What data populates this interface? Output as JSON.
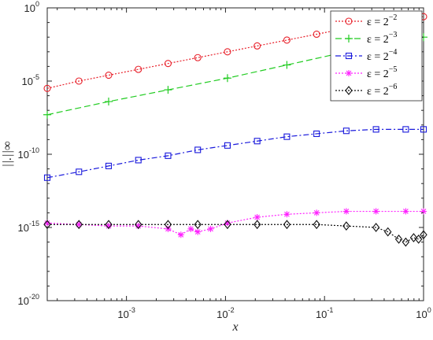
{
  "chart_data": {
    "type": "line",
    "xlabel": "x",
    "ylabel": "||.||∞",
    "xscale": "log",
    "yscale": "log",
    "xlim_exp": [
      -3.8,
      0
    ],
    "ylim_exp": [
      -20,
      0
    ],
    "x_ticks": [
      {
        "base": "10",
        "exp": "-3"
      },
      {
        "base": "10",
        "exp": "-2"
      },
      {
        "base": "10",
        "exp": "-1"
      },
      {
        "base": "10",
        "exp": "0"
      }
    ],
    "y_ticks": [
      {
        "base": "10",
        "exp": "-20"
      },
      {
        "base": "10",
        "exp": "-15"
      },
      {
        "base": "10",
        "exp": "-10"
      },
      {
        "base": "10",
        "exp": "-5"
      },
      {
        "base": "10",
        "exp": "0"
      }
    ],
    "legend_position": "top-right",
    "grid": false,
    "series": [
      {
        "name": "ε = 2",
        "name_sup": "−2",
        "color": "#e8202a",
        "dash": "2,2",
        "marker": "circle",
        "log10_x": [
          -3.8,
          -3.48,
          -3.18,
          -2.88,
          -2.58,
          -2.28,
          -1.98,
          -1.68,
          -1.38,
          -1.08,
          -0.78,
          -0.48,
          -0.18,
          0
        ],
        "log10_y": [
          -5.5,
          -5.0,
          -4.6,
          -4.2,
          -3.8,
          -3.4,
          -3.0,
          -2.6,
          -2.2,
          -1.8,
          -1.4,
          -1.0,
          -0.7,
          -0.6
        ]
      },
      {
        "name": "ε = 2",
        "name_sup": "−3",
        "color": "#22cc22",
        "dash": "8,4",
        "marker": "plus",
        "log10_x": [
          -3.8,
          -3.18,
          -2.58,
          -1.98,
          -1.38,
          -0.78,
          -0.18,
          0
        ],
        "log10_y": [
          -7.3,
          -6.4,
          -5.6,
          -4.8,
          -3.9,
          -3.0,
          -2.2,
          -2.0
        ]
      },
      {
        "name": "ε = 2",
        "name_sup": "−4",
        "color": "#1a1adc",
        "dash": "7,3,2,3",
        "marker": "square",
        "log10_x": [
          -3.8,
          -3.48,
          -3.18,
          -2.88,
          -2.58,
          -2.28,
          -1.98,
          -1.68,
          -1.38,
          -1.08,
          -0.78,
          -0.48,
          -0.18,
          0
        ],
        "log10_y": [
          -11.6,
          -11.2,
          -10.8,
          -10.4,
          -10.1,
          -9.7,
          -9.4,
          -9.1,
          -8.8,
          -8.6,
          -8.4,
          -8.3,
          -8.3,
          -8.3
        ]
      },
      {
        "name": "ε = 2",
        "name_sup": "−5",
        "color": "#ff22ff",
        "dash": "2,2",
        "marker": "star",
        "log10_x": [
          -3.8,
          -3.48,
          -3.18,
          -2.88,
          -2.58,
          -2.45,
          -2.35,
          -2.28,
          -2.15,
          -1.98,
          -1.68,
          -1.38,
          -1.08,
          -0.78,
          -0.48,
          -0.18,
          0
        ],
        "log10_y": [
          -14.7,
          -14.8,
          -14.9,
          -14.9,
          -15.1,
          -15.5,
          -15.1,
          -15.3,
          -15.1,
          -14.7,
          -14.3,
          -14.1,
          -14.0,
          -13.9,
          -13.9,
          -13.9,
          -13.9
        ]
      },
      {
        "name": "ε = 2",
        "name_sup": "−6",
        "color": "#111111",
        "dash": "2,2",
        "marker": "diamond",
        "log10_x": [
          -3.8,
          -3.48,
          -3.18,
          -2.88,
          -2.58,
          -2.28,
          -1.98,
          -1.68,
          -1.38,
          -1.08,
          -0.78,
          -0.48,
          -0.36,
          -0.25,
          -0.18,
          -0.1,
          -0.05,
          0
        ],
        "log10_y": [
          -14.8,
          -14.8,
          -14.8,
          -14.8,
          -14.8,
          -14.8,
          -14.8,
          -14.8,
          -14.8,
          -14.8,
          -14.9,
          -15.0,
          -15.3,
          -15.8,
          -16.0,
          -15.7,
          -15.8,
          -15.5
        ]
      }
    ]
  }
}
